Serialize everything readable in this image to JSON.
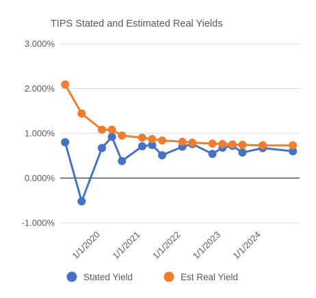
{
  "chart_data": {
    "type": "line",
    "title": "TIPS Stated and Estimated Real Yields",
    "xlabel": "",
    "ylabel": "",
    "y_tick_labels": [
      "3.000%",
      "2.000%",
      "1.000%",
      "0.000%",
      "-1.000%"
    ],
    "y_tick_values": [
      3.0,
      2.0,
      1.0,
      0.0,
      -1.0
    ],
    "ylim": [
      -1.0,
      3.0
    ],
    "x_tick_labels": [
      "1/1/2020",
      "1/1/2021",
      "1/1/2022",
      "1/1/2023",
      "1/1/2024"
    ],
    "x_tick_dates": [
      "2020-01-01",
      "2021-01-01",
      "2022-01-01",
      "2023-01-01",
      "2024-01-01"
    ],
    "xlim": [
      "2019-01-01",
      "2024-12-15"
    ],
    "grid": "horizontal-major",
    "legend_position": "bottom",
    "x": [
      "2019-02-15",
      "2019-07-15",
      "2020-01-15",
      "2020-04-15",
      "2020-07-15",
      "2021-01-15",
      "2021-04-15",
      "2021-07-15",
      "2022-01-15",
      "2022-04-15",
      "2022-10-15",
      "2023-01-15",
      "2023-04-15",
      "2023-07-15",
      "2024-01-15",
      "2024-10-15"
    ],
    "series": [
      {
        "name": "Stated Yield",
        "color": "#4472C4",
        "values": [
          0.8,
          -0.52,
          0.67,
          0.92,
          0.38,
          0.71,
          0.74,
          0.51,
          0.7,
          0.76,
          0.54,
          0.68,
          0.72,
          0.57,
          0.67,
          0.6
        ]
      },
      {
        "name": "Est Real Yield",
        "color": "#ED7D31",
        "values": [
          2.09,
          1.44,
          1.08,
          1.08,
          0.95,
          0.9,
          0.87,
          0.84,
          0.81,
          0.79,
          0.77,
          0.76,
          0.75,
          0.74,
          0.73,
          0.73
        ]
      }
    ]
  }
}
